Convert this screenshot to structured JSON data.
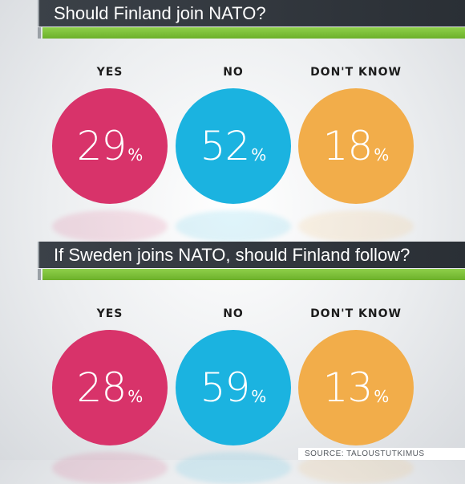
{
  "colors": {
    "yes": "#d8336a",
    "no": "#1bb3e0",
    "dont_know": "#f2ad4a"
  },
  "chart_data": [
    {
      "type": "pie",
      "title": "Should Finland join NATO?",
      "categories": [
        "YES",
        "NO",
        "DON'T KNOW"
      ],
      "values": [
        29,
        52,
        18
      ],
      "unit": "%"
    },
    {
      "type": "pie",
      "title": "If Sweden joins NATO, should Finland follow?",
      "categories": [
        "YES",
        "NO",
        "DON'T KNOW"
      ],
      "values": [
        28,
        59,
        13
      ],
      "unit": "%"
    }
  ],
  "source": "SOURCE: TALOUSTUTKIMUS"
}
